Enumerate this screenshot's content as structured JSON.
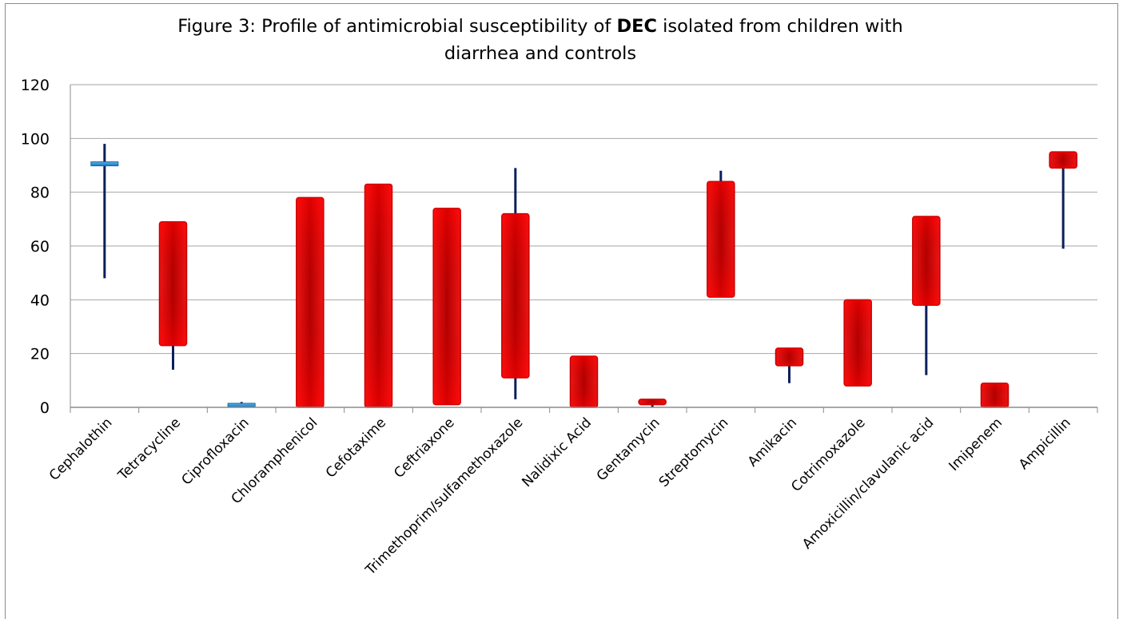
{
  "chart_data": {
    "type": "box",
    "title_parts": [
      "Figure 3: Profile of antimicrobial susceptibility of ",
      "DEC",
      " isolated from children with"
    ],
    "title_line2": "diarrhea and controls",
    "ylim": [
      0,
      120
    ],
    "yticks": [
      "0",
      "20",
      "40",
      "60",
      "80",
      "100",
      "120"
    ],
    "ytick_values": [
      0,
      20,
      40,
      60,
      80,
      100,
      120
    ],
    "grid": true,
    "categories": [
      "Cephalothin",
      "Tetracycline",
      "Ciprofloxacin",
      "Chloramphenicol",
      "Cefotaxime",
      "Ceftriaxone",
      "Trimethoprim/sulfamethoxazole",
      "Nalidixic Acid",
      "Gentamycin",
      "Streptomycin",
      "Amikacin",
      "Cotrimoxazole",
      "Amoxicillin/clavulanic acid",
      "Imipenem",
      "Ampicillin"
    ],
    "boxes": [
      {
        "low": 48,
        "high": 98,
        "open": 91,
        "close": 90.5,
        "color": "blue"
      },
      {
        "low": 14,
        "high": 69,
        "open": 69,
        "close": 23,
        "color": "red"
      },
      {
        "low": 0,
        "high": 2,
        "open": 1.2,
        "close": 0.4,
        "color": "blue"
      },
      {
        "low": 0,
        "high": 78,
        "open": 78,
        "close": 0,
        "color": "red"
      },
      {
        "low": 0,
        "high": 83,
        "open": 83,
        "close": 0,
        "color": "red"
      },
      {
        "low": 1,
        "high": 74,
        "open": 74,
        "close": 1,
        "color": "red"
      },
      {
        "low": 3,
        "high": 89,
        "open": 72,
        "close": 11,
        "color": "red"
      },
      {
        "low": 0,
        "high": 19,
        "open": 19,
        "close": 0,
        "color": "red"
      },
      {
        "low": 0,
        "high": 3,
        "open": 3,
        "close": 1,
        "color": "red"
      },
      {
        "low": 41,
        "high": 88,
        "open": 84,
        "close": 41,
        "color": "red"
      },
      {
        "low": 9,
        "high": 22,
        "open": 22,
        "close": 15.5,
        "color": "red"
      },
      {
        "low": 8,
        "high": 40,
        "open": 40,
        "close": 8,
        "color": "red"
      },
      {
        "low": 12,
        "high": 71,
        "open": 71,
        "close": 38,
        "color": "red"
      },
      {
        "low": 0,
        "high": 9,
        "open": 9,
        "close": 0,
        "color": "red"
      },
      {
        "low": 59,
        "high": 95,
        "open": 95,
        "close": 89,
        "color": "red"
      }
    ],
    "colors": {
      "red_fill": "#ff0000",
      "red_dark": "#a00000",
      "blue_fill": "#1f8fd8",
      "whisker": "#0a1f5c",
      "grid": "#a6a6a6",
      "axis": "#8c8c8c"
    }
  }
}
